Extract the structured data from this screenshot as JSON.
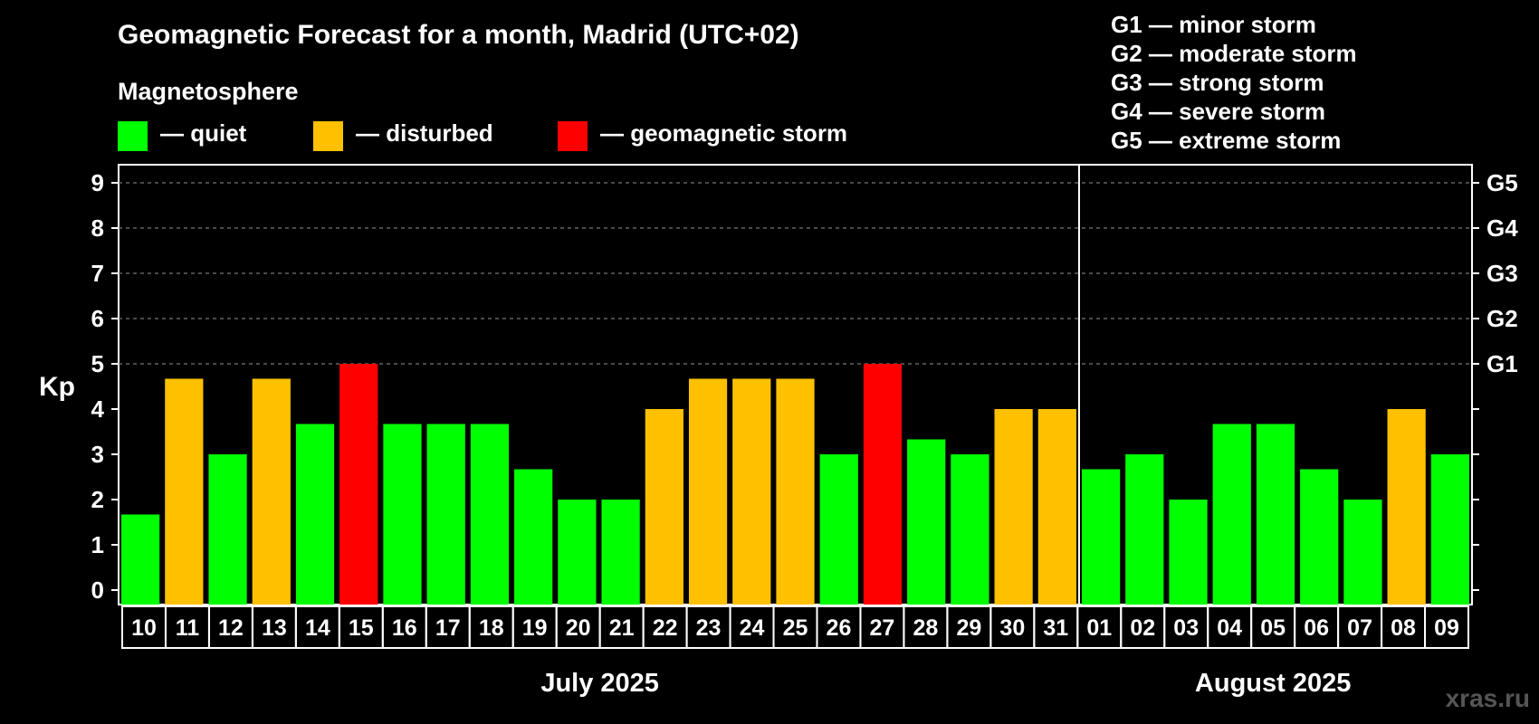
{
  "header": {
    "title": "Geomagnetic Forecast for a month, Madrid (UTC+02)",
    "magnetosphere": "Magnetosphere",
    "legend": [
      {
        "label": "— quiet",
        "color": "#00ff00"
      },
      {
        "label": "— disturbed",
        "color": "#ffc000"
      },
      {
        "label": "— geomagnetic storm",
        "color": "#ff0000"
      }
    ],
    "g_scale": [
      "G1 — minor storm",
      "G2 — moderate storm",
      "G3 — strong storm",
      "G4 — severe storm",
      "G5 — extreme storm"
    ]
  },
  "watermark": "xras.ru",
  "chart_data": {
    "type": "bar",
    "ylabel": "Kp",
    "ylim": [
      0,
      9
    ],
    "yticks": [
      "0",
      "1",
      "2",
      "3",
      "4",
      "5",
      "6",
      "7",
      "8",
      "9"
    ],
    "right_labels": [
      {
        "kp": 5,
        "label": "G1"
      },
      {
        "kp": 6,
        "label": "G2"
      },
      {
        "kp": 7,
        "label": "G3"
      },
      {
        "kp": 8,
        "label": "G4"
      },
      {
        "kp": 9,
        "label": "G5"
      }
    ],
    "categories": [
      "10",
      "11",
      "12",
      "13",
      "14",
      "15",
      "16",
      "17",
      "18",
      "19",
      "20",
      "21",
      "22",
      "23",
      "24",
      "25",
      "26",
      "27",
      "28",
      "29",
      "30",
      "31",
      "01",
      "02",
      "03",
      "04",
      "05",
      "06",
      "07",
      "08",
      "09"
    ],
    "values": [
      1.67,
      4.67,
      3,
      4.67,
      3.67,
      5,
      3.67,
      3.67,
      3.67,
      2.67,
      2,
      2,
      4,
      4.67,
      4.67,
      4.67,
      3,
      5,
      3.33,
      3,
      4,
      4,
      2.67,
      3,
      2,
      3.67,
      3.67,
      2.67,
      2,
      4,
      3
    ],
    "status": [
      "quiet",
      "disturbed",
      "quiet",
      "disturbed",
      "quiet",
      "storm",
      "quiet",
      "quiet",
      "quiet",
      "quiet",
      "quiet",
      "quiet",
      "disturbed",
      "disturbed",
      "disturbed",
      "disturbed",
      "quiet",
      "storm",
      "quiet",
      "quiet",
      "disturbed",
      "disturbed",
      "quiet",
      "quiet",
      "quiet",
      "quiet",
      "quiet",
      "quiet",
      "quiet",
      "disturbed",
      "quiet"
    ],
    "colors": {
      "quiet": "#00ff00",
      "disturbed": "#ffc000",
      "storm": "#ff0000"
    },
    "months": [
      {
        "label": "July 2025",
        "start": 0,
        "end": 21
      },
      {
        "label": "August 2025",
        "start": 22,
        "end": 30
      }
    ]
  }
}
